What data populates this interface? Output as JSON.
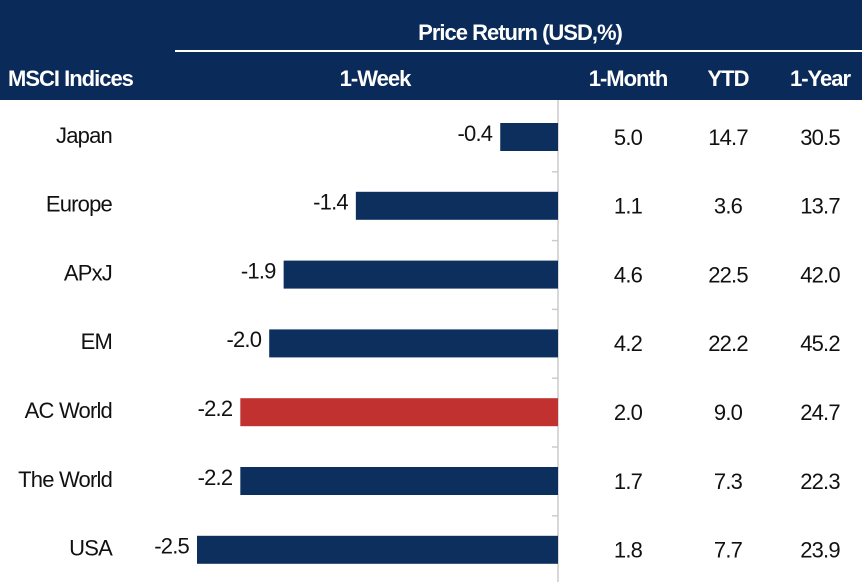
{
  "chart_data": {
    "type": "bar",
    "title": "Price Return (USD,%)",
    "row_header": "MSCI Indices",
    "categories": [
      "Japan",
      "Europe",
      "APxJ",
      "EM",
      "AC World",
      "The World",
      "USA"
    ],
    "series": [
      {
        "name": "1-Week",
        "values": [
          -0.4,
          -1.4,
          -1.9,
          -2,
          -2.2,
          -2.2,
          -2.5
        ],
        "value_labels": [
          "-0.4",
          "-1.4",
          "-1.9",
          "-2.0",
          "-2.2",
          "-2.2",
          "-2.5"
        ],
        "colors": [
          "#0d2f5e",
          "#0d2f5e",
          "#0d2f5e",
          "#0d2f5e",
          "#c0312f",
          "#0d2f5e",
          "#0d2f5e"
        ]
      }
    ],
    "columns": [
      {
        "name": "1-Month",
        "values": [
          "5.0",
          "1.1",
          "4.6",
          "4.2",
          "2.0",
          "1.7",
          "1.8"
        ]
      },
      {
        "name": "YTD",
        "values": [
          "14.7",
          "3.6",
          "22.5",
          "22.2",
          "9.0",
          "7.3",
          "7.7"
        ]
      },
      {
        "name": "1-Year",
        "values": [
          "30.5",
          "13.7",
          "42.0",
          "45.2",
          "24.7",
          "22.3",
          "23.9"
        ]
      }
    ],
    "xlim": [
      -2.5,
      0
    ]
  }
}
